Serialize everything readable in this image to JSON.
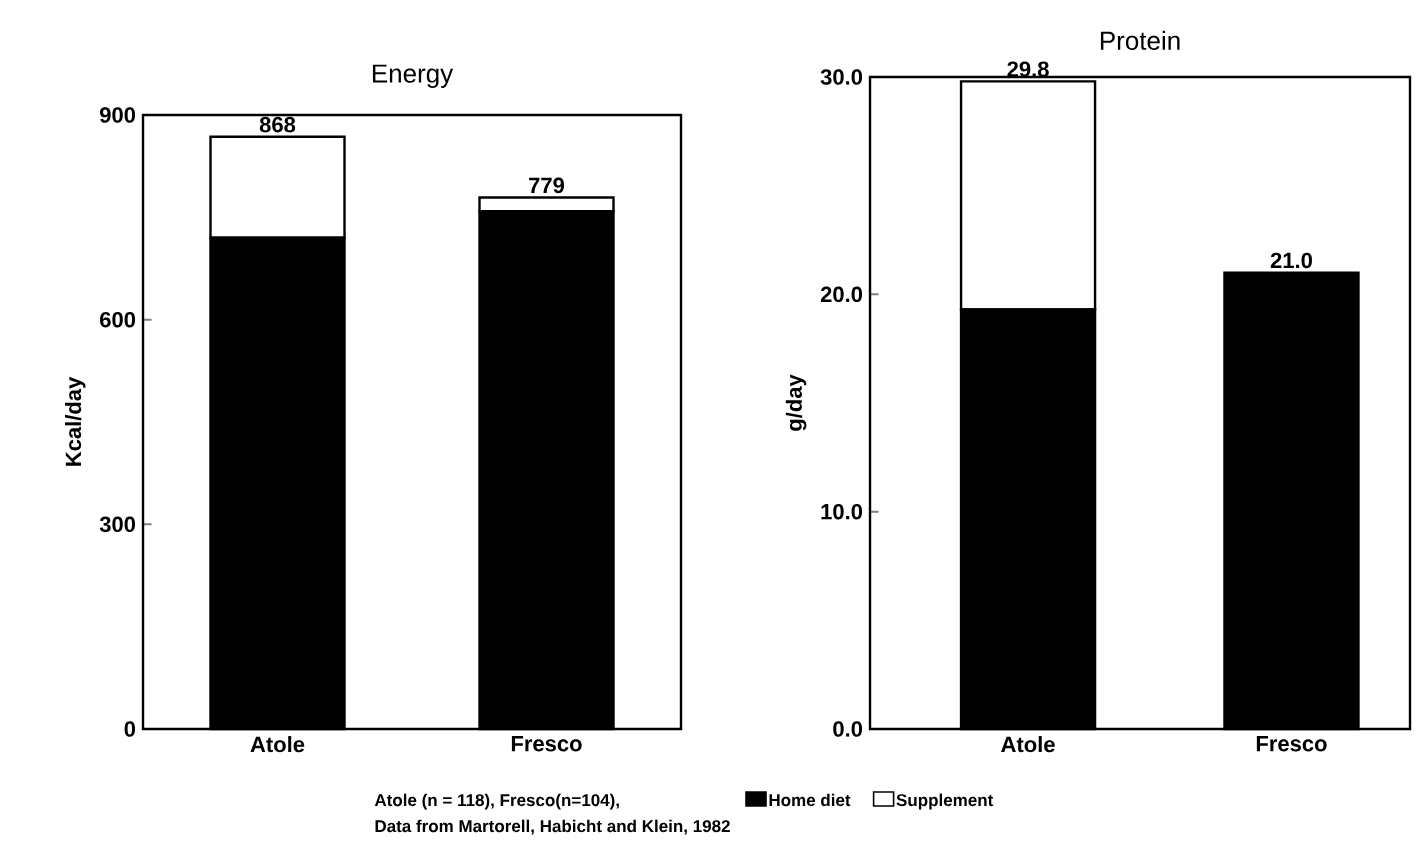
{
  "chart_data": [
    {
      "type": "bar",
      "title": "Energy",
      "ylabel": "Kcal/day",
      "categories": [
        "Atole",
        "Fresco"
      ],
      "stacked": true,
      "series": [
        {
          "name": "Home diet",
          "color": "#000000",
          "values": [
            720,
            759
          ]
        },
        {
          "name": "Supplement",
          "color": "#ffffff",
          "values": [
            148,
            20
          ]
        }
      ],
      "totals": [
        "868",
        "779"
      ],
      "ylim": [
        0,
        900
      ],
      "yticks": [
        0,
        300,
        600,
        900
      ],
      "legend": "bottom",
      "annotations": [
        "Atole (n = 118), Fresco(n=104),",
        "Data from Martorell, Habicht and Klein, 1982"
      ]
    },
    {
      "type": "bar",
      "title": "Protein",
      "ylabel": "g/day",
      "categories": [
        "Atole",
        "Fresco"
      ],
      "stacked": true,
      "series": [
        {
          "color": "#000000",
          "values": [
            19.3,
            21.0
          ]
        },
        {
          "color": "#ffffff",
          "values": [
            10.5,
            0
          ]
        }
      ],
      "totals": [
        "29.8",
        "21.0"
      ],
      "ylim": [
        0,
        30
      ],
      "yticks": [
        {
          "value": 0,
          "label": "0.0"
        },
        {
          "value": 10,
          "label": "10.0"
        },
        {
          "value": 20,
          "label": "20.0"
        },
        {
          "value": 30,
          "label": "30.0"
        }
      ]
    }
  ]
}
